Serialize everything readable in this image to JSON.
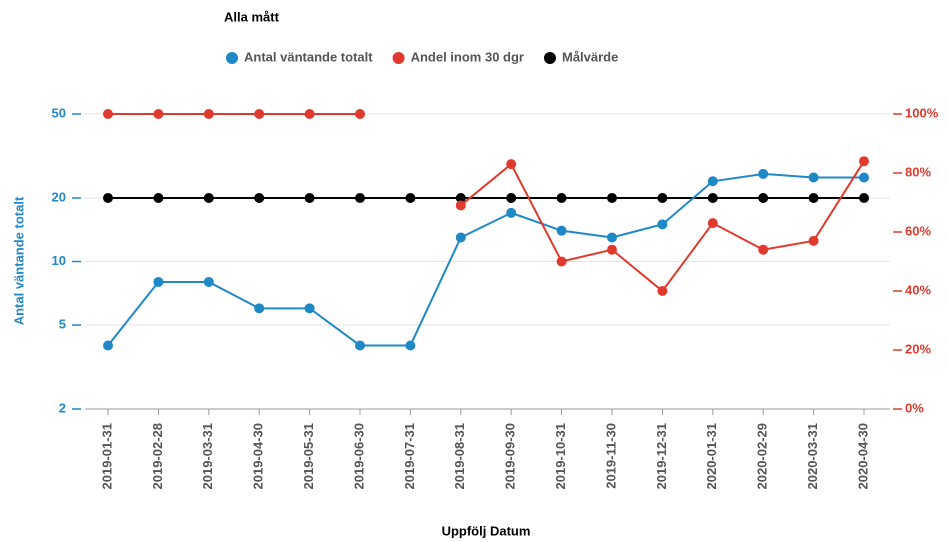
{
  "chart_data": {
    "type": "line",
    "title": "Alla mått",
    "xlabel": "Uppfölj Datum",
    "ylabel": "Antal väntande totalt",
    "categories": [
      "2019-01-31",
      "2019-02-28",
      "2019-03-31",
      "2019-04-30",
      "2019-05-31",
      "2019-06-30",
      "2019-07-31",
      "2019-08-31",
      "2019-09-30",
      "2019-10-31",
      "2019-11-30",
      "2019-12-31",
      "2020-01-31",
      "2020-02-29",
      "2020-03-31",
      "2020-04-30"
    ],
    "series": [
      {
        "name": "Antal väntande totalt",
        "color": "#1f88c6",
        "values": [
          4,
          8,
          8,
          6,
          6,
          4,
          4,
          13,
          17,
          14,
          13,
          15,
          24,
          26,
          25,
          25
        ]
      },
      {
        "name": "Andel inom 30 dgr",
        "color": "#e03a2e",
        "axis": "y2",
        "values": [
          100,
          100,
          100,
          100,
          100,
          100,
          null,
          69,
          83,
          50,
          54,
          40,
          63,
          54,
          57,
          84
        ]
      },
      {
        "name": "Målvärde",
        "color": "#000000",
        "values": [
          20,
          20,
          20,
          20,
          20,
          20,
          20,
          20,
          20,
          20,
          20,
          20,
          20,
          20,
          20,
          20
        ]
      }
    ],
    "ylim": [
      2,
      50
    ],
    "yscale": "log",
    "yticks": [
      2,
      5,
      10,
      20,
      50
    ],
    "y2lim": [
      0,
      100
    ],
    "y2ticks": [
      {
        "value": 0,
        "label": "0%"
      },
      {
        "value": 20,
        "label": "20%"
      },
      {
        "value": 40,
        "label": "40%"
      },
      {
        "value": 60,
        "label": "60%"
      },
      {
        "value": 80,
        "label": "80%"
      },
      {
        "value": 100,
        "label": "100%"
      }
    ],
    "grid": true
  }
}
